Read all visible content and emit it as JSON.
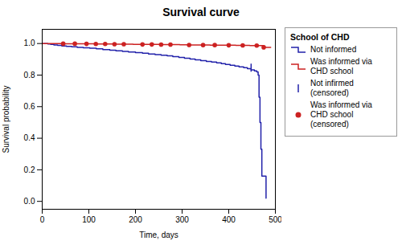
{
  "chart_data": {
    "type": "line",
    "title": "Survival curve",
    "x_label": "Time, days",
    "y_label": "Survival probability",
    "legend_title": "School of CHD",
    "legend": "right",
    "grid": false,
    "xlim": [
      0,
      500
    ],
    "ylim": [
      -0.05,
      1.09
    ],
    "xticks": [
      0,
      100,
      200,
      300,
      400,
      500
    ],
    "yticks": [
      {
        "value": 0.0,
        "label": "0.0"
      },
      0.2,
      0.4,
      0.6,
      0.8,
      {
        "value": 1.0,
        "label": "1.0"
      }
    ],
    "series": [
      {
        "name": "Not informed",
        "type": "step",
        "color": "#2222aa",
        "x": [
          0,
          5,
          12,
          18,
          25,
          33,
          42,
          52,
          63,
          75,
          88,
          102,
          116,
          130,
          145,
          158,
          172,
          185,
          200,
          215,
          228,
          242,
          255,
          268,
          280,
          293,
          305,
          317,
          328,
          340,
          352,
          363,
          374,
          384,
          393,
          403,
          413,
          422,
          432,
          440,
          448,
          455,
          460,
          463,
          465,
          467,
          469,
          471,
          480
        ],
        "values": [
          1.0,
          1.0,
          0.997,
          0.994,
          0.991,
          0.988,
          0.985,
          0.982,
          0.979,
          0.976,
          0.973,
          0.97,
          0.966,
          0.962,
          0.958,
          0.954,
          0.95,
          0.946,
          0.942,
          0.938,
          0.934,
          0.93,
          0.926,
          0.922,
          0.917,
          0.912,
          0.907,
          0.902,
          0.897,
          0.892,
          0.887,
          0.882,
          0.877,
          0.872,
          0.867,
          0.862,
          0.857,
          0.852,
          0.847,
          0.84,
          0.833,
          0.826,
          0.82,
          0.8,
          0.66,
          0.5,
          0.33,
          0.16,
          0.02
        ]
      },
      {
        "name": "Was informed via CHD school",
        "type": "step",
        "color": "#cc2222",
        "x": [
          0,
          20,
          45,
          70,
          95,
          115,
          135,
          155,
          175,
          195,
          215,
          235,
          255,
          275,
          295,
          315,
          335,
          360,
          385,
          415,
          445,
          475,
          490
        ],
        "values": [
          1.0,
          1.0,
          0.999,
          0.999,
          0.998,
          0.997,
          0.997,
          0.996,
          0.996,
          0.995,
          0.994,
          0.994,
          0.993,
          0.993,
          0.992,
          0.991,
          0.991,
          0.99,
          0.989,
          0.988,
          0.987,
          0.976,
          0.975
        ]
      },
      {
        "name": "Not infirmed (censored)",
        "type": "scatter",
        "marker": "tick",
        "color": "#2222aa",
        "x": [
          448
        ],
        "values": [
          0.847
        ]
      },
      {
        "name": "Was informed via\nCHD school\n(censored)",
        "type": "scatter",
        "marker": "circle",
        "color": "#cc2222",
        "x": [
          45,
          70,
          95,
          115,
          135,
          155,
          175,
          215,
          235,
          255,
          275,
          315,
          345,
          370,
          400,
          430,
          460,
          475
        ],
        "values": [
          0.999,
          0.999,
          0.998,
          0.997,
          0.997,
          0.996,
          0.996,
          0.994,
          0.994,
          0.993,
          0.993,
          0.991,
          0.99,
          0.99,
          0.989,
          0.988,
          0.987,
          0.976
        ]
      }
    ]
  }
}
